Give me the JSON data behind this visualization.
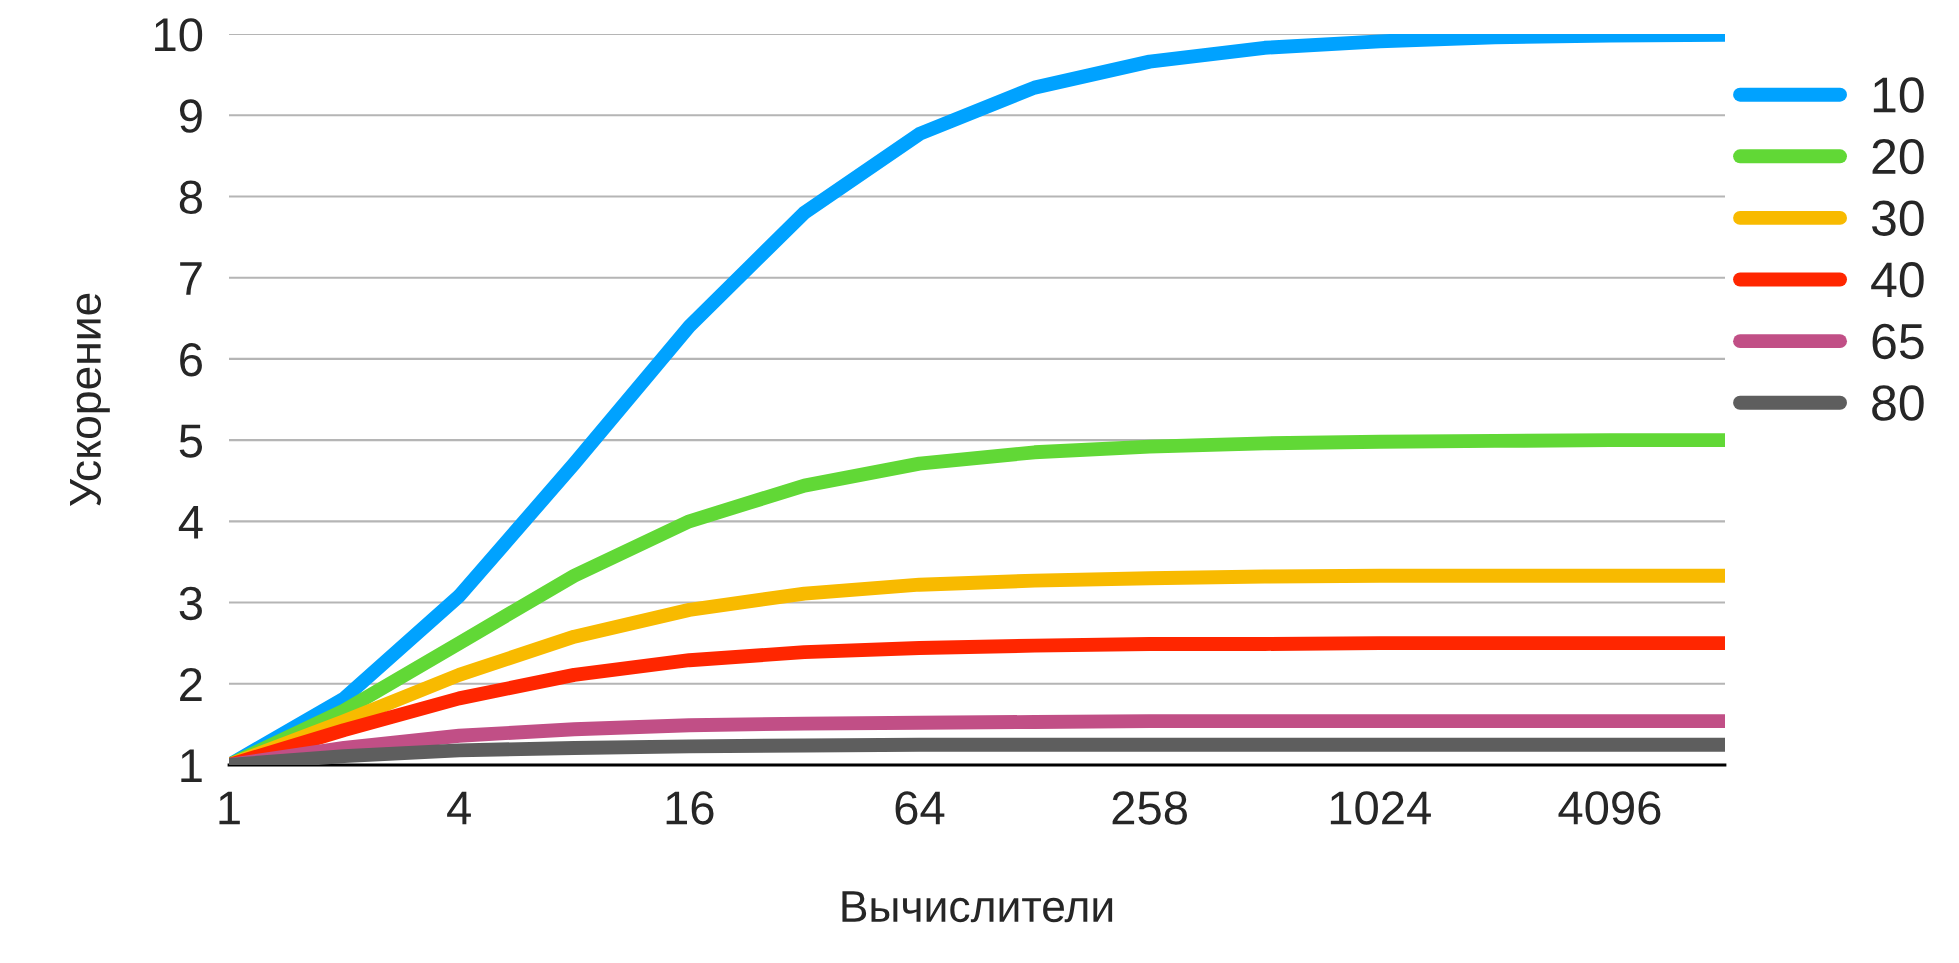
{
  "chart_data": {
    "type": "line",
    "xlabel": "Вычислители",
    "ylabel": "Ускорение",
    "categories": [
      "1",
      null,
      "4",
      null,
      "16",
      null,
      "64",
      null,
      "258",
      null,
      "1024",
      null,
      "4096",
      null
    ],
    "series": [
      {
        "name": "10",
        "color": "#00a2ff",
        "values": [
          1,
          1.82,
          3.08,
          4.71,
          6.4,
          7.8,
          8.77,
          9.34,
          9.66,
          9.83,
          9.91,
          9.96,
          9.98,
          9.99
        ]
      },
      {
        "name": "20",
        "color": "#61d836",
        "values": [
          1,
          1.67,
          2.5,
          3.33,
          4,
          4.44,
          4.71,
          4.85,
          4.92,
          4.96,
          4.98,
          4.99,
          5,
          5
        ]
      },
      {
        "name": "30",
        "color": "#f8ba00",
        "values": [
          1,
          1.54,
          2.11,
          2.58,
          2.91,
          3.11,
          3.22,
          3.27,
          3.3,
          3.32,
          3.33,
          3.33,
          3.33,
          3.33
        ]
      },
      {
        "name": "40",
        "color": "#ff2600",
        "values": [
          1,
          1.43,
          1.82,
          2.11,
          2.29,
          2.39,
          2.44,
          2.47,
          2.49,
          2.49,
          2.5,
          2.5,
          2.5,
          2.5
        ]
      },
      {
        "name": "65",
        "color": "#c14f86",
        "values": [
          1,
          1.21,
          1.36,
          1.44,
          1.49,
          1.51,
          1.52,
          1.53,
          1.54,
          1.54,
          1.54,
          1.54,
          1.54,
          1.54
        ]
      },
      {
        "name": "80",
        "color": "#5e5e5e",
        "values": [
          1,
          1.11,
          1.18,
          1.21,
          1.23,
          1.24,
          1.25,
          1.25,
          1.25,
          1.25,
          1.25,
          1.25,
          1.25,
          1.25
        ]
      }
    ],
    "ylim": [
      1,
      10
    ],
    "yticks": [
      1,
      2,
      3,
      4,
      5,
      6,
      7,
      8,
      9,
      10
    ],
    "grid": "y",
    "legend": "right",
    "line_style": "solid"
  }
}
